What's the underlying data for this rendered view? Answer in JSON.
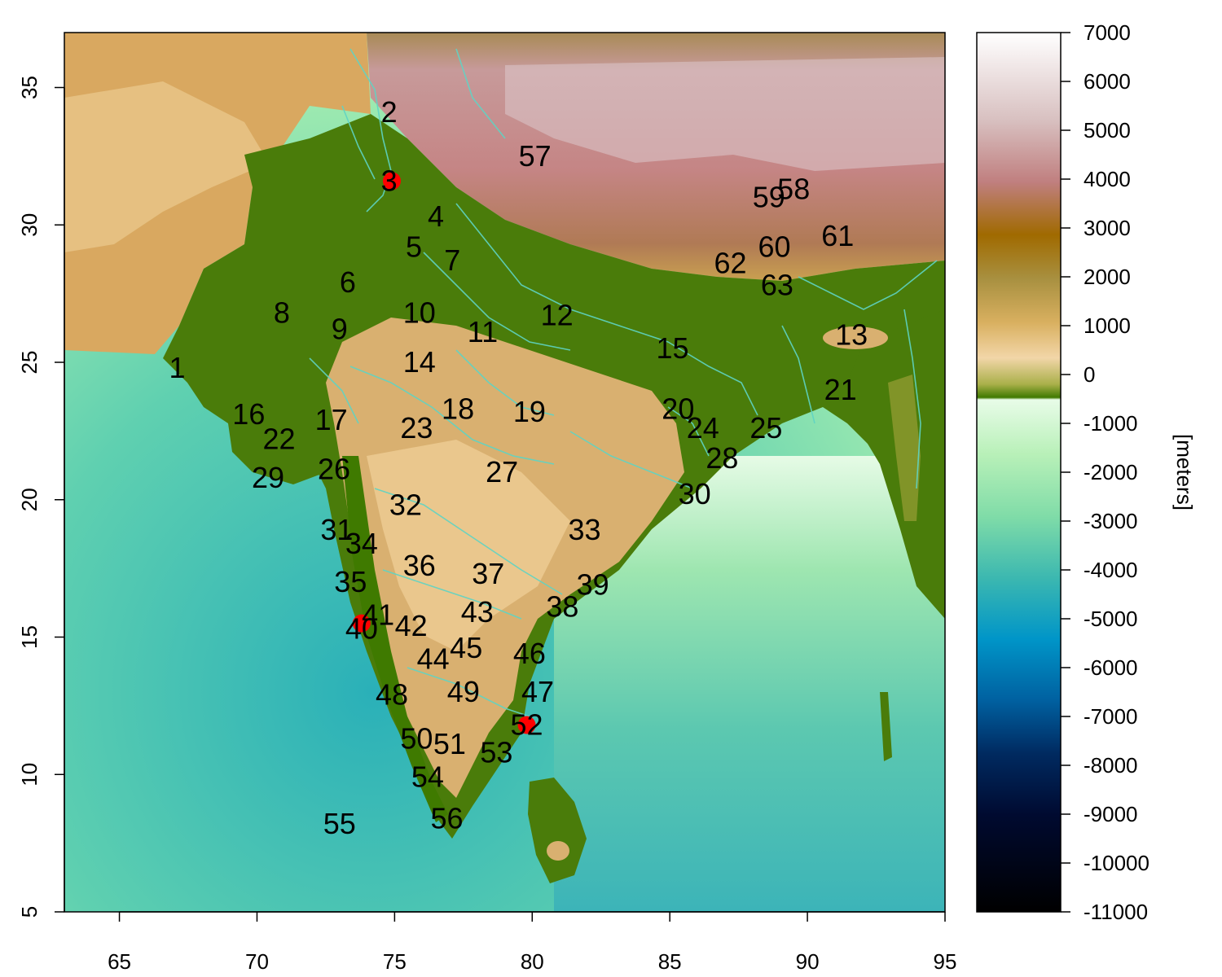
{
  "map": {
    "x_ticks": [
      65,
      70,
      75,
      80,
      85,
      90,
      95
    ],
    "y_ticks": [
      5,
      10,
      15,
      20,
      25,
      30,
      35
    ],
    "xlim": [
      63,
      95
    ],
    "ylim": [
      5,
      37
    ]
  },
  "colorbar": {
    "unit_label": "[meters]",
    "ticks": [
      "7000",
      "6000",
      "5000",
      "4000",
      "3000",
      "2000",
      "1000",
      "0",
      "-1000",
      "-2000",
      "-3000",
      "-4000",
      "-5000",
      "-6000",
      "-7000",
      "-8000",
      "-9000",
      "-10000",
      "-11000"
    ],
    "range": [
      -11000,
      7000
    ],
    "colors": {
      "land_low": "#3f7a00",
      "land_mid": "#f0d090",
      "land_high": "#a06800",
      "mountain": "#c08080",
      "snow": "#ffffff",
      "shelf": "#e6fbe6",
      "shallow": "#a8eea0",
      "mid_sea": "#50c8a8",
      "deep": "#0090c8",
      "trench": "#002060",
      "abyss": "#000000"
    }
  },
  "regions": [
    {
      "label": "1",
      "lon": 67.1,
      "lat": 24.8
    },
    {
      "label": "2",
      "lon": 74.8,
      "lat": 34.1
    },
    {
      "label": "3",
      "lon": 74.8,
      "lat": 31.6
    },
    {
      "label": "4",
      "lon": 76.5,
      "lat": 30.3
    },
    {
      "label": "5",
      "lon": 75.7,
      "lat": 29.2
    },
    {
      "label": "6",
      "lon": 73.3,
      "lat": 27.9
    },
    {
      "label": "7",
      "lon": 77.1,
      "lat": 28.7
    },
    {
      "label": "8",
      "lon": 70.9,
      "lat": 26.8
    },
    {
      "label": "9",
      "lon": 73.0,
      "lat": 26.2
    },
    {
      "label": "10",
      "lon": 75.9,
      "lat": 26.8
    },
    {
      "label": "11",
      "lon": 78.2,
      "lat": 26.1
    },
    {
      "label": "12",
      "lon": 80.9,
      "lat": 26.7
    },
    {
      "label": "13",
      "lon": 91.6,
      "lat": 26.0
    },
    {
      "label": "14",
      "lon": 75.9,
      "lat": 25.0
    },
    {
      "label": "15",
      "lon": 85.1,
      "lat": 25.5
    },
    {
      "label": "16",
      "lon": 69.7,
      "lat": 23.1
    },
    {
      "label": "17",
      "lon": 72.7,
      "lat": 22.9
    },
    {
      "label": "18",
      "lon": 77.3,
      "lat": 23.3
    },
    {
      "label": "19",
      "lon": 79.9,
      "lat": 23.2
    },
    {
      "label": "20",
      "lon": 85.3,
      "lat": 23.3
    },
    {
      "label": "21",
      "lon": 91.2,
      "lat": 24.0
    },
    {
      "label": "22",
      "lon": 70.8,
      "lat": 22.2
    },
    {
      "label": "23",
      "lon": 75.8,
      "lat": 22.6
    },
    {
      "label": "24",
      "lon": 86.2,
      "lat": 22.6
    },
    {
      "label": "25",
      "lon": 88.5,
      "lat": 22.6
    },
    {
      "label": "26",
      "lon": 72.8,
      "lat": 21.1
    },
    {
      "label": "27",
      "lon": 78.9,
      "lat": 21.0
    },
    {
      "label": "28",
      "lon": 86.9,
      "lat": 21.5
    },
    {
      "label": "29",
      "lon": 70.4,
      "lat": 20.8
    },
    {
      "label": "30",
      "lon": 85.9,
      "lat": 20.2
    },
    {
      "label": "31",
      "lon": 72.9,
      "lat": 18.9
    },
    {
      "label": "32",
      "lon": 75.4,
      "lat": 19.8
    },
    {
      "label": "33",
      "lon": 81.9,
      "lat": 18.9
    },
    {
      "label": "34",
      "lon": 73.8,
      "lat": 18.4
    },
    {
      "label": "35",
      "lon": 73.4,
      "lat": 17.0
    },
    {
      "label": "36",
      "lon": 75.9,
      "lat": 17.6
    },
    {
      "label": "37",
      "lon": 78.4,
      "lat": 17.3
    },
    {
      "label": "38",
      "lon": 81.1,
      "lat": 16.1
    },
    {
      "label": "39",
      "lon": 82.2,
      "lat": 16.9
    },
    {
      "label": "40",
      "lon": 73.8,
      "lat": 15.3
    },
    {
      "label": "41",
      "lon": 74.4,
      "lat": 15.8
    },
    {
      "label": "42",
      "lon": 75.6,
      "lat": 15.4
    },
    {
      "label": "43",
      "lon": 78.0,
      "lat": 15.9
    },
    {
      "label": "44",
      "lon": 76.4,
      "lat": 14.2
    },
    {
      "label": "45",
      "lon": 77.6,
      "lat": 14.6
    },
    {
      "label": "46",
      "lon": 79.9,
      "lat": 14.4
    },
    {
      "label": "47",
      "lon": 80.2,
      "lat": 13.0
    },
    {
      "label": "48",
      "lon": 74.9,
      "lat": 12.9
    },
    {
      "label": "49",
      "lon": 77.5,
      "lat": 13.0
    },
    {
      "label": "50",
      "lon": 75.8,
      "lat": 11.3
    },
    {
      "label": "51",
      "lon": 77.0,
      "lat": 11.1
    },
    {
      "label": "52",
      "lon": 79.8,
      "lat": 11.8
    },
    {
      "label": "53",
      "lon": 78.7,
      "lat": 10.8
    },
    {
      "label": "54",
      "lon": 76.2,
      "lat": 9.9
    },
    {
      "label": "55",
      "lon": 73.0,
      "lat": 8.2
    },
    {
      "label": "56",
      "lon": 76.9,
      "lat": 8.4
    },
    {
      "label": "57",
      "lon": 80.1,
      "lat": 32.5
    },
    {
      "label": "58",
      "lon": 89.5,
      "lat": 31.3
    },
    {
      "label": "59",
      "lon": 88.6,
      "lat": 31.0
    },
    {
      "label": "60",
      "lon": 88.8,
      "lat": 29.2
    },
    {
      "label": "61",
      "lon": 91.1,
      "lat": 29.6
    },
    {
      "label": "62",
      "lon": 87.2,
      "lat": 28.6
    },
    {
      "label": "63",
      "lon": 88.9,
      "lat": 27.8
    }
  ],
  "markers": [
    {
      "name": "red-dot-3",
      "lon": 74.9,
      "lat": 31.6,
      "color": "#ff0000"
    },
    {
      "name": "red-dot-40",
      "lon": 73.8,
      "lat": 15.5,
      "color": "#ff0000"
    },
    {
      "name": "red-dot-52",
      "lon": 79.8,
      "lat": 11.8,
      "color": "#ff0000"
    }
  ]
}
